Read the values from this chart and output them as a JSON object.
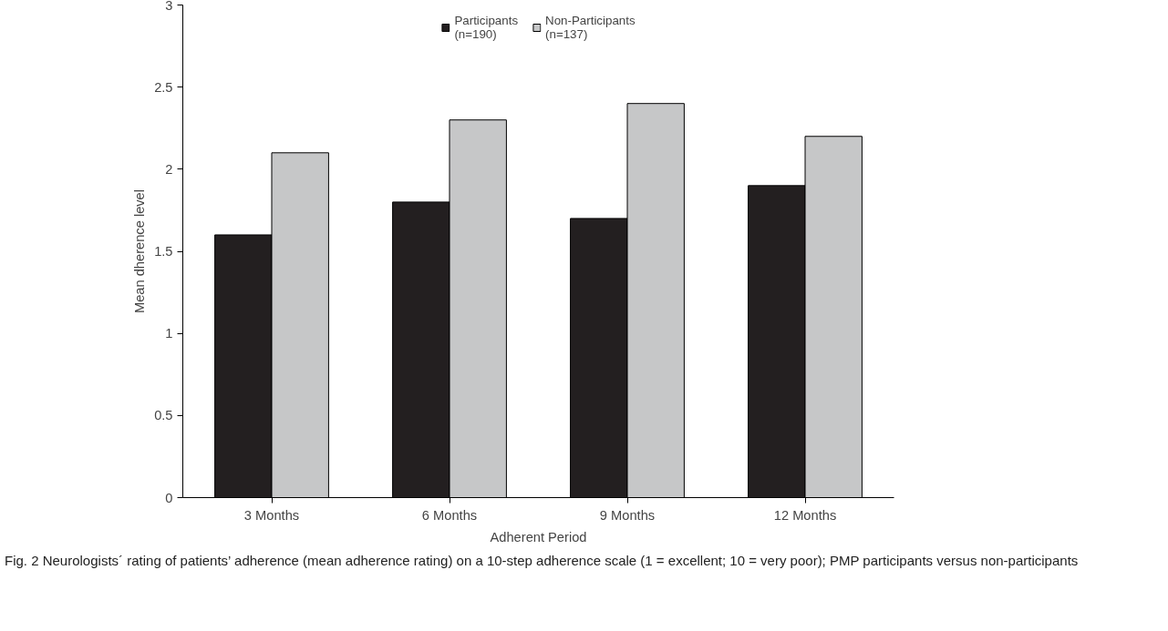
{
  "chart_data": {
    "type": "bar",
    "xlabel": "Adherent Period",
    "ylabel": "Mean dherence level",
    "categories": [
      "3 Months",
      "6 Months",
      "9 Months",
      "12 Months"
    ],
    "series": [
      {
        "name": "Participants\n(n=190)",
        "color": "#231f20",
        "values": [
          1.6,
          1.8,
          1.7,
          1.9
        ]
      },
      {
        "name": "Non-Participants\n(n=137)",
        "color": "#c6c7c8",
        "values": [
          2.1,
          2.3,
          2.4,
          2.2
        ]
      }
    ],
    "ylim": [
      0,
      3
    ],
    "yticks": [
      0,
      0.5,
      1,
      1.5,
      2,
      2.5,
      3
    ],
    "grid": false,
    "legend": "top",
    "annotations": [
      "Fig. 2 Neurologists´ rating of patients’ adherence (mean adherence rating) on a 10-step adherence scale (1 = excellent; 10 = very poor); PMP participants versus non-participants"
    ]
  }
}
